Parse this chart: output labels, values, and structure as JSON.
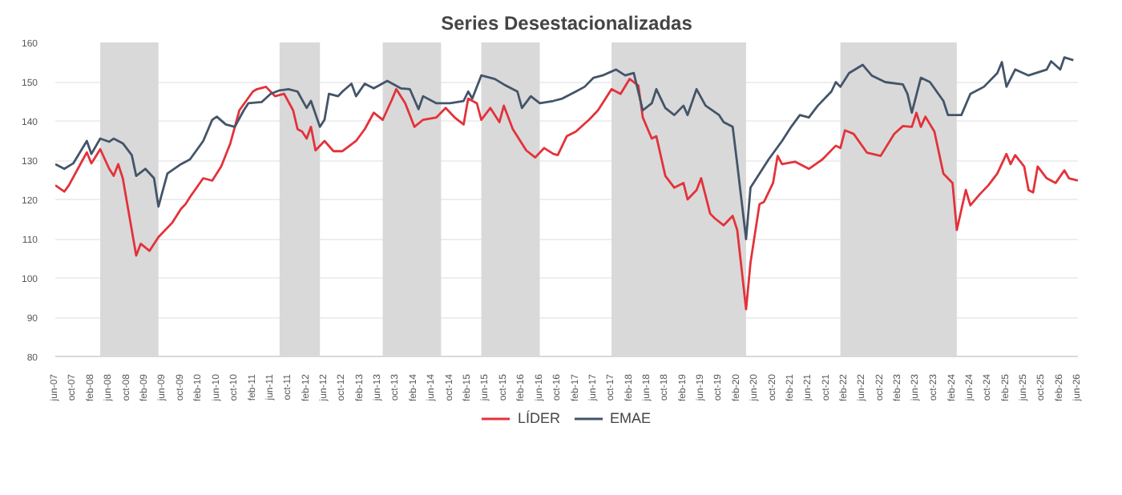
{
  "chart_data": {
    "type": "line",
    "title": "Series Desestacionalizadas",
    "ylim": [
      80,
      160
    ],
    "yticks": [
      80,
      90,
      100,
      110,
      120,
      130,
      140,
      150,
      160
    ],
    "xlim": [
      "2007-06",
      "2026-06"
    ],
    "xticks": [
      {
        "value": "2007-06",
        "label": "jun-07"
      },
      {
        "value": "2007-10",
        "label": "oct-07"
      },
      {
        "value": "2008-02",
        "label": "feb-08"
      },
      {
        "value": "2008-06",
        "label": "jun-08"
      },
      {
        "value": "2008-10",
        "label": "oct-08"
      },
      {
        "value": "2009-02",
        "label": "feb-09"
      },
      {
        "value": "2009-06",
        "label": "jun-09"
      },
      {
        "value": "2009-10",
        "label": "oct-09"
      },
      {
        "value": "2010-02",
        "label": "feb-10"
      },
      {
        "value": "2010-06",
        "label": "jun-10"
      },
      {
        "value": "2010-10",
        "label": "oct-10"
      },
      {
        "value": "2011-02",
        "label": "feb-11"
      },
      {
        "value": "2011-06",
        "label": "jun-11"
      },
      {
        "value": "2011-10",
        "label": "oct-11"
      },
      {
        "value": "2012-02",
        "label": "feb-12"
      },
      {
        "value": "2012-06",
        "label": "jun-12"
      },
      {
        "value": "2012-10",
        "label": "oct-12"
      },
      {
        "value": "2013-02",
        "label": "feb-13"
      },
      {
        "value": "2013-06",
        "label": "jun-13"
      },
      {
        "value": "2013-10",
        "label": "oct-13"
      },
      {
        "value": "2014-02",
        "label": "feb-14"
      },
      {
        "value": "2014-06",
        "label": "jun-14"
      },
      {
        "value": "2014-10",
        "label": "oct-14"
      },
      {
        "value": "2015-02",
        "label": "feb-15"
      },
      {
        "value": "2015-06",
        "label": "jun-15"
      },
      {
        "value": "2015-10",
        "label": "oct-15"
      },
      {
        "value": "2016-02",
        "label": "feb-16"
      },
      {
        "value": "2016-06",
        "label": "jun-16"
      },
      {
        "value": "2016-10",
        "label": "oct-16"
      },
      {
        "value": "2017-02",
        "label": "feb-17"
      },
      {
        "value": "2017-06",
        "label": "jun-17"
      },
      {
        "value": "2017-10",
        "label": "oct-17"
      },
      {
        "value": "2018-02",
        "label": "feb-18"
      },
      {
        "value": "2018-06",
        "label": "jun-18"
      },
      {
        "value": "2018-10",
        "label": "oct-18"
      },
      {
        "value": "2019-02",
        "label": "feb-19"
      },
      {
        "value": "2019-06",
        "label": "jun-19"
      },
      {
        "value": "2019-10",
        "label": "oct-19"
      },
      {
        "value": "2020-02",
        "label": "feb-20"
      },
      {
        "value": "2020-06",
        "label": "jun-20"
      },
      {
        "value": "2020-10",
        "label": "oct-20"
      },
      {
        "value": "2021-02",
        "label": "feb-21"
      },
      {
        "value": "2021-06",
        "label": "jun-21"
      },
      {
        "value": "2021-10",
        "label": "oct-21"
      },
      {
        "value": "2022-02",
        "label": "feb-22"
      },
      {
        "value": "2022-06",
        "label": "jun-22"
      },
      {
        "value": "2022-10",
        "label": "oct-22"
      },
      {
        "value": "2023-02",
        "label": "feb-23"
      },
      {
        "value": "2023-06",
        "label": "jun-23"
      },
      {
        "value": "2023-10",
        "label": "oct-23"
      },
      {
        "value": "2024-02",
        "label": "feb-24"
      },
      {
        "value": "2024-06",
        "label": "jun-24"
      },
      {
        "value": "2024-10",
        "label": "oct-24"
      },
      {
        "value": "2025-02",
        "label": "feb-25"
      },
      {
        "value": "2025-06",
        "label": "jun-25"
      },
      {
        "value": "2025-10",
        "label": "oct-25"
      },
      {
        "value": "2026-02",
        "label": "feb-26"
      },
      {
        "value": "2026-06",
        "label": "jun-26"
      }
    ],
    "grid": "y",
    "legend": "bottom",
    "line_style": "solid",
    "marker": "none",
    "bands": [
      {
        "axis": "x",
        "from": "2008-04",
        "to": "2009-05",
        "label": null,
        "color": "#d9d9d9"
      },
      {
        "axis": "x",
        "from": "2011-08",
        "to": "2012-05",
        "label": null,
        "color": "#d9d9d9"
      },
      {
        "axis": "x",
        "from": "2013-07",
        "to": "2014-08",
        "label": null,
        "color": "#d9d9d9"
      },
      {
        "axis": "x",
        "from": "2015-05",
        "to": "2016-06",
        "label": null,
        "color": "#d9d9d9"
      },
      {
        "axis": "x",
        "from": "2017-10",
        "to": "2020-04",
        "label": null,
        "color": "#d9d9d9"
      },
      {
        "axis": "x",
        "from": "2022-01",
        "to": "2024-03",
        "label": null,
        "color": "#d9d9d9"
      }
    ],
    "series": [
      {
        "name": "LÍDER",
        "color": "#e3323b",
        "x": [
          "2007-06",
          "2007-08",
          "2007-09",
          "2007-11",
          "2008-01",
          "2008-02",
          "2008-04",
          "2008-06",
          "2008-07",
          "2008-08",
          "2008-09",
          "2008-11",
          "2008-12",
          "2009-01",
          "2009-03",
          "2009-05",
          "2009-08",
          "2009-10",
          "2009-11",
          "2009-12",
          "2010-03",
          "2010-05",
          "2010-07",
          "2010-09",
          "2010-11",
          "2011-02",
          "2011-03",
          "2011-05",
          "2011-07",
          "2011-09",
          "2011-11",
          "2011-12",
          "2012-01",
          "2012-02",
          "2012-03",
          "2012-04",
          "2012-06",
          "2012-08",
          "2012-10",
          "2013-01",
          "2013-03",
          "2013-05",
          "2013-07",
          "2013-09",
          "2013-10",
          "2013-12",
          "2014-02",
          "2014-04",
          "2014-07",
          "2014-09",
          "2014-11",
          "2015-01",
          "2015-02",
          "2015-04",
          "2015-05",
          "2015-07",
          "2015-09",
          "2015-10",
          "2015-12",
          "2016-03",
          "2016-05",
          "2016-07",
          "2016-09",
          "2016-10",
          "2016-12",
          "2017-02",
          "2017-05",
          "2017-07",
          "2017-10",
          "2017-12",
          "2018-02",
          "2018-04",
          "2018-05",
          "2018-07",
          "2018-08",
          "2018-10",
          "2018-12",
          "2019-02",
          "2019-03",
          "2019-05",
          "2019-06",
          "2019-08",
          "2019-09",
          "2019-11",
          "2020-01",
          "2020-02",
          "2020-04",
          "2020-05",
          "2020-07",
          "2020-08",
          "2020-10",
          "2020-11",
          "2020-12",
          "2021-03",
          "2021-06",
          "2021-09",
          "2021-12",
          "2022-01",
          "2022-02",
          "2022-04",
          "2022-07",
          "2022-10",
          "2023-01",
          "2023-03",
          "2023-05",
          "2023-06",
          "2023-07",
          "2023-08",
          "2023-10",
          "2023-12",
          "2024-02",
          "2024-03",
          "2024-05",
          "2024-06",
          "2024-08",
          "2024-10",
          "2024-12",
          "2025-02",
          "2025-03",
          "2025-04",
          "2025-06",
          "2025-07",
          "2025-08",
          "2025-09",
          "2025-11",
          "2026-01",
          "2026-03",
          "2026-04",
          "2026-06"
        ],
        "values": [
          123.6,
          122.0,
          123.6,
          127.8,
          132.0,
          129.2,
          132.8,
          127.8,
          126.0,
          129.0,
          125.4,
          112.2,
          105.7,
          108.7,
          106.9,
          110.4,
          114.0,
          117.6,
          118.8,
          120.6,
          125.4,
          124.8,
          128.4,
          134.3,
          142.7,
          147.5,
          148.1,
          148.7,
          146.3,
          146.9,
          142.7,
          137.9,
          137.3,
          135.5,
          138.5,
          132.5,
          134.9,
          132.3,
          132.3,
          134.9,
          137.9,
          142.1,
          140.3,
          145.4,
          148.1,
          144.5,
          138.5,
          140.3,
          140.9,
          143.3,
          140.9,
          139.1,
          145.7,
          144.5,
          140.3,
          143.3,
          139.7,
          143.9,
          137.9,
          132.5,
          130.7,
          133.1,
          131.6,
          131.3,
          136.1,
          137.3,
          140.3,
          142.7,
          148.1,
          146.9,
          150.7,
          149.0,
          140.9,
          135.5,
          136.1,
          126.0,
          123.0,
          124.2,
          120.0,
          122.4,
          125.4,
          116.4,
          115.2,
          113.4,
          115.8,
          112.2,
          92.0,
          103.9,
          118.8,
          119.4,
          124.2,
          131.1,
          129.0,
          129.6,
          127.8,
          130.2,
          133.7,
          133.1,
          137.6,
          136.7,
          131.9,
          131.1,
          136.7,
          138.7,
          138.5,
          142.1,
          138.5,
          141.1,
          137.3,
          126.6,
          124.2,
          112.2,
          122.4,
          118.5,
          121.2,
          123.6,
          126.6,
          131.6,
          129.0,
          131.3,
          128.4,
          122.4,
          121.8,
          128.4,
          125.4,
          124.2,
          127.4,
          125.4,
          124.8
        ]
      },
      {
        "name": "EMAE",
        "color": "#44546a",
        "x": [
          "2007-06",
          "2007-08",
          "2007-10",
          "2008-01",
          "2008-02",
          "2008-04",
          "2008-06",
          "2008-07",
          "2008-09",
          "2008-11",
          "2008-12",
          "2009-02",
          "2009-04",
          "2009-05",
          "2009-07",
          "2009-10",
          "2009-12",
          "2010-03",
          "2010-05",
          "2010-06",
          "2010-08",
          "2010-10",
          "2010-12",
          "2011-01",
          "2011-04",
          "2011-06",
          "2011-08",
          "2011-10",
          "2011-12",
          "2012-02",
          "2012-03",
          "2012-05",
          "2012-06",
          "2012-07",
          "2012-09",
          "2012-10",
          "2012-12",
          "2013-01",
          "2013-03",
          "2013-05",
          "2013-08",
          "2013-11",
          "2014-01",
          "2014-03",
          "2014-04",
          "2014-07",
          "2014-10",
          "2015-01",
          "2015-02",
          "2015-03",
          "2015-05",
          "2015-08",
          "2015-10",
          "2016-01",
          "2016-02",
          "2016-04",
          "2016-06",
          "2016-09",
          "2016-11",
          "2017-02",
          "2017-04",
          "2017-06",
          "2017-08",
          "2017-11",
          "2018-01",
          "2018-03",
          "2018-05",
          "2018-07",
          "2018-08",
          "2018-10",
          "2018-12",
          "2019-02",
          "2019-03",
          "2019-05",
          "2019-07",
          "2019-10",
          "2019-11",
          "2020-01",
          "2020-02",
          "2020-04",
          "2020-05",
          "2020-07",
          "2020-09",
          "2020-12",
          "2021-02",
          "2021-04",
          "2021-06",
          "2021-08",
          "2021-11",
          "2021-12",
          "2022-01",
          "2022-03",
          "2022-06",
          "2022-08",
          "2022-11",
          "2023-03",
          "2023-04",
          "2023-05",
          "2023-07",
          "2023-09",
          "2023-12",
          "2024-01",
          "2024-04",
          "2024-06",
          "2024-09",
          "2024-12",
          "2025-01",
          "2025-02",
          "2025-04",
          "2025-07",
          "2025-11",
          "2025-12",
          "2026-02",
          "2026-03",
          "2026-05"
        ],
        "values": [
          129.0,
          127.8,
          129.2,
          134.9,
          131.6,
          135.5,
          134.7,
          135.5,
          134.3,
          131.3,
          126.0,
          127.8,
          125.4,
          118.2,
          126.6,
          129.0,
          130.2,
          134.9,
          140.3,
          141.1,
          139.1,
          138.5,
          142.7,
          144.5,
          144.8,
          146.9,
          147.8,
          148.1,
          147.5,
          143.3,
          145.1,
          138.5,
          140.3,
          146.9,
          146.3,
          147.5,
          149.5,
          146.3,
          149.5,
          148.3,
          150.2,
          148.3,
          148.1,
          143.0,
          146.3,
          144.5,
          144.5,
          145.1,
          147.5,
          145.7,
          151.6,
          150.7,
          149.3,
          147.5,
          143.3,
          146.3,
          144.5,
          145.1,
          145.7,
          147.5,
          148.7,
          151.0,
          151.6,
          153.1,
          151.6,
          152.2,
          142.7,
          144.5,
          148.1,
          143.3,
          141.5,
          143.9,
          141.5,
          148.1,
          143.9,
          141.5,
          139.7,
          138.5,
          129.0,
          109.9,
          123.0,
          126.6,
          130.2,
          134.9,
          138.5,
          141.5,
          140.9,
          143.9,
          147.5,
          149.9,
          148.7,
          152.2,
          154.3,
          151.6,
          149.9,
          149.3,
          146.9,
          142.1,
          151.0,
          149.9,
          145.1,
          141.5,
          141.5,
          146.9,
          148.7,
          152.2,
          155.0,
          148.7,
          153.1,
          151.6,
          153.1,
          155.2,
          153.1,
          156.2,
          155.5
        ]
      }
    ]
  }
}
